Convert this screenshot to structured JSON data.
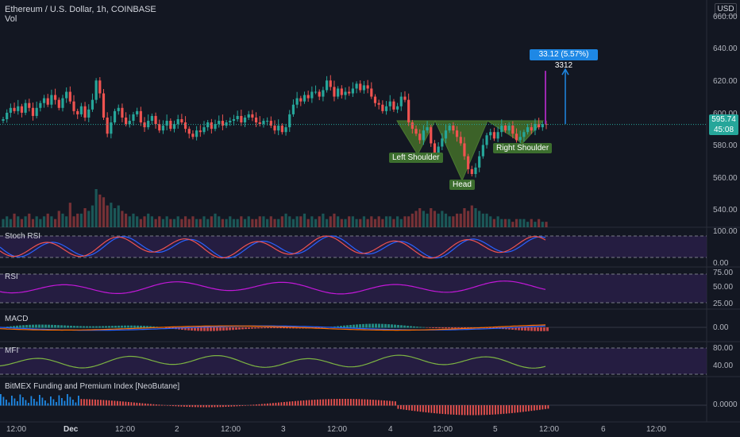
{
  "header": {
    "title": "Ethereum / U.S. Dollar, 1h, COINBASE",
    "volume_label": "Vol",
    "currency": "USD"
  },
  "price_scale": {
    "ticks": [
      "660.00",
      "640.00",
      "620.00",
      "600.00",
      "580.00",
      "560.00",
      "540.00"
    ],
    "last_price": "595.74",
    "countdown": "45:08"
  },
  "x_axis": {
    "ticks": [
      "12:00",
      "Dec",
      "12:00",
      "2",
      "12:00",
      "3",
      "12:00",
      "4",
      "12:00",
      "5",
      "12:00",
      "6",
      "12:00"
    ],
    "bold": [
      "Dec"
    ]
  },
  "annotations": {
    "left_shoulder": "Left Shoulder",
    "head": "Head",
    "right_shoulder": "Right Shoulder",
    "target": "33.12 (5.57%) 3312"
  },
  "colors": {
    "up": "#26a69a",
    "down": "#ef5350",
    "background": "#131722",
    "pattern_fill": "#4a7c2a",
    "panel_fill": "#2a1f4a",
    "target_blue": "#1e88e5"
  },
  "panels": [
    {
      "label": "Stoch RSI",
      "ticks": [
        "100.00",
        "0.00"
      ]
    },
    {
      "label": "RSI",
      "ticks": [
        "75.00",
        "50.00",
        "25.00"
      ]
    },
    {
      "label": "MACD",
      "ticks": [
        "0.00"
      ]
    },
    {
      "label": "MFI",
      "ticks": [
        "80.00",
        "40.00"
      ]
    },
    {
      "label": "BitMEX Funding and Premium Index [NeoButane]",
      "ticks": [
        "0.0000"
      ]
    }
  ],
  "chart_data": {
    "type": "candlestick",
    "symbol": "ETHUSD",
    "interval": "1h",
    "ylim": [
      530,
      668
    ],
    "last": 595.74,
    "close": [
      599,
      603,
      606,
      604,
      607,
      603,
      609,
      606,
      601,
      606,
      609,
      612,
      608,
      614,
      611,
      606,
      612,
      616,
      610,
      604,
      602,
      607,
      600,
      605,
      611,
      623,
      615,
      600,
      590,
      597,
      604,
      606,
      600,
      596,
      598,
      602,
      604,
      597,
      594,
      598,
      601,
      596,
      592,
      595,
      598,
      593,
      596,
      599,
      597,
      593,
      590,
      588,
      592,
      591,
      594,
      597,
      593,
      596,
      598,
      595,
      597,
      598,
      599,
      601,
      597,
      600,
      602,
      600,
      597,
      596,
      598,
      598,
      595,
      592,
      595,
      591,
      594,
      602,
      608,
      612,
      610,
      614,
      612,
      616,
      616,
      613,
      617,
      623,
      619,
      613,
      618,
      614,
      616,
      615,
      618,
      621,
      617,
      620,
      618,
      613,
      609,
      608,
      604,
      607,
      610,
      605,
      607,
      613,
      611,
      597,
      593,
      590,
      586,
      592,
      594,
      584,
      578,
      582,
      587,
      592,
      595,
      592,
      588,
      584,
      576,
      568,
      565,
      569,
      576,
      583,
      589,
      591,
      587,
      591,
      595,
      592,
      595,
      590,
      586,
      588,
      591,
      594,
      592,
      596,
      594,
      596,
      595.74
    ],
    "volume": [
      3,
      4,
      3,
      5,
      4,
      3,
      4,
      5,
      3,
      4,
      3,
      4,
      5,
      4,
      3,
      6,
      5,
      4,
      9,
      4,
      5,
      5,
      7,
      6,
      8,
      14,
      12,
      11,
      8,
      9,
      7,
      8,
      6,
      5,
      4,
      5,
      4,
      3,
      4,
      5,
      4,
      3,
      4,
      3,
      4,
      3,
      3,
      4,
      3,
      4,
      3,
      4,
      3,
      3,
      4,
      3,
      4,
      5,
      4,
      3,
      3,
      4,
      3,
      3,
      4,
      3,
      4,
      3,
      3,
      4,
      4,
      3,
      4,
      3,
      3,
      4,
      5,
      4,
      3,
      4,
      4,
      5,
      3,
      4,
      3,
      4,
      5,
      3,
      4,
      5,
      4,
      3,
      3,
      4,
      4,
      3,
      3,
      4,
      3,
      4,
      3,
      4,
      3,
      4,
      4,
      3,
      4,
      3,
      4,
      4,
      5,
      6,
      7,
      6,
      5,
      7,
      6,
      5,
      6,
      5,
      4,
      4,
      5,
      5,
      7,
      6,
      8,
      7,
      6,
      5,
      5,
      4,
      3,
      4,
      3,
      3,
      3,
      2,
      3,
      3,
      3,
      2,
      3,
      2,
      3,
      2,
      2
    ]
  }
}
